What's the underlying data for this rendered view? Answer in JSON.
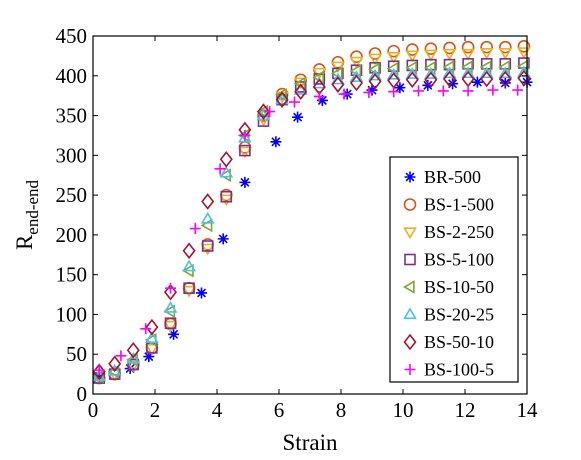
{
  "chart_data": {
    "type": "scatter",
    "xlabel": "Strain",
    "ylabel_main": "R",
    "ylabel_sub": "end-end",
    "xlim": [
      0,
      14
    ],
    "ylim": [
      0,
      450
    ],
    "xticks": [
      0,
      2,
      4,
      6,
      8,
      10,
      12,
      14
    ],
    "yticks": [
      0,
      50,
      100,
      150,
      200,
      250,
      300,
      350,
      400,
      450
    ],
    "grid": false,
    "legend_position": "bottom-right",
    "series": [
      {
        "name": "BR-500",
        "marker": "asterisk",
        "color": "#0000ff",
        "x": [
          0.2,
          1.2,
          1.8,
          2.6,
          3.5,
          4.2,
          4.9,
          5.9,
          6.6,
          7.4,
          8.2,
          9.0,
          9.9,
          10.8,
          11.6,
          12.4,
          13.3,
          14.0
        ],
        "y": [
          22,
          32,
          47,
          75,
          127,
          195,
          266,
          317,
          348,
          369,
          377,
          382,
          385,
          388,
          390,
          392,
          391,
          392
        ]
      },
      {
        "name": "BS-1-500",
        "marker": "circle",
        "color": "#d95319",
        "x": [
          0.2,
          0.7,
          1.3,
          1.9,
          2.5,
          3.1,
          3.7,
          4.3,
          4.9,
          5.5,
          6.1,
          6.7,
          7.3,
          7.9,
          8.5,
          9.1,
          9.7,
          10.3,
          10.9,
          11.5,
          12.1,
          12.7,
          13.3,
          13.9
        ],
        "y": [
          20,
          25,
          37,
          58,
          88,
          133,
          188,
          250,
          310,
          350,
          377,
          395,
          408,
          417,
          424,
          428,
          431,
          433,
          434,
          435,
          436,
          436,
          436,
          437
        ]
      },
      {
        "name": "BS-2-250",
        "marker": "triangle-down",
        "color": "#edb120",
        "x": [
          0.2,
          0.7,
          1.3,
          1.9,
          2.5,
          3.1,
          3.7,
          4.3,
          4.9,
          5.5,
          6.1,
          6.7,
          7.3,
          7.9,
          8.5,
          9.1,
          9.7,
          10.3,
          10.9,
          11.5,
          12.1,
          12.7,
          13.3,
          13.9
        ],
        "y": [
          20,
          25,
          36,
          57,
          86,
          130,
          183,
          245,
          305,
          345,
          374,
          392,
          404,
          412,
          418,
          422,
          424,
          426,
          427,
          428,
          428,
          429,
          429,
          430
        ]
      },
      {
        "name": "BS-5-100",
        "marker": "square",
        "color": "#7e2f8e",
        "x": [
          0.2,
          0.7,
          1.3,
          1.9,
          2.5,
          3.1,
          3.7,
          4.3,
          4.9,
          5.5,
          6.1,
          6.7,
          7.3,
          7.9,
          8.5,
          9.1,
          9.7,
          10.3,
          10.9,
          11.5,
          12.1,
          12.7,
          13.3,
          13.9
        ],
        "y": [
          20,
          25,
          37,
          58,
          89,
          133,
          186,
          248,
          306,
          343,
          370,
          386,
          396,
          403,
          407,
          410,
          412,
          413,
          414,
          414,
          415,
          415,
          415,
          416
        ]
      },
      {
        "name": "BS-10-50",
        "marker": "triangle-left",
        "color": "#77ac30",
        "x": [
          0.2,
          0.7,
          1.3,
          1.9,
          2.5,
          3.1,
          3.7,
          4.3,
          4.9,
          5.5,
          6.1,
          6.7,
          7.3,
          7.9,
          8.5,
          9.1,
          9.7,
          10.3,
          10.9,
          11.5,
          12.1,
          12.7,
          13.3,
          13.9
        ],
        "y": [
          22,
          28,
          43,
          68,
          104,
          155,
          212,
          275,
          325,
          355,
          376,
          390,
          398,
          403,
          406,
          408,
          409,
          410,
          410,
          411,
          411,
          411,
          411,
          412
        ]
      },
      {
        "name": "BS-20-25",
        "marker": "triangle-up",
        "color": "#4dbeee",
        "x": [
          0.2,
          0.7,
          1.3,
          1.9,
          2.5,
          3.1,
          3.7,
          4.3,
          4.9,
          5.5,
          6.1,
          6.7,
          7.3,
          7.9,
          8.5,
          9.1,
          9.7,
          10.3,
          10.9,
          11.5,
          12.1,
          12.7,
          13.3,
          13.9
        ],
        "y": [
          22,
          29,
          44,
          70,
          108,
          160,
          220,
          278,
          322,
          350,
          370,
          382,
          390,
          395,
          398,
          400,
          401,
          402,
          402,
          403,
          403,
          403,
          403,
          404
        ]
      },
      {
        "name": "BS-50-10",
        "marker": "diamond",
        "color": "#a2142f",
        "x": [
          0.2,
          0.7,
          1.3,
          1.9,
          2.5,
          3.1,
          3.7,
          4.3,
          4.9,
          5.5,
          6.1,
          6.7,
          7.3,
          7.9,
          8.5,
          9.1,
          9.7,
          10.3,
          10.9,
          11.5,
          12.1,
          12.7,
          13.3,
          13.9
        ],
        "y": [
          28,
          38,
          55,
          84,
          128,
          180,
          242,
          295,
          332,
          355,
          370,
          380,
          386,
          389,
          391,
          393,
          394,
          395,
          395,
          396,
          396,
          396,
          396,
          397
        ]
      },
      {
        "name": "BS-100-5",
        "marker": "plus",
        "color": "#ff00ff",
        "x": [
          0.2,
          0.9,
          1.7,
          2.5,
          3.3,
          4.1,
          4.9,
          5.7,
          6.5,
          7.3,
          8.1,
          8.9,
          9.7,
          10.5,
          11.3,
          12.1,
          12.9,
          13.7
        ],
        "y": [
          30,
          48,
          82,
          133,
          208,
          283,
          325,
          355,
          367,
          374,
          377,
          379,
          380,
          381,
          381,
          381,
          382,
          382
        ]
      }
    ]
  }
}
